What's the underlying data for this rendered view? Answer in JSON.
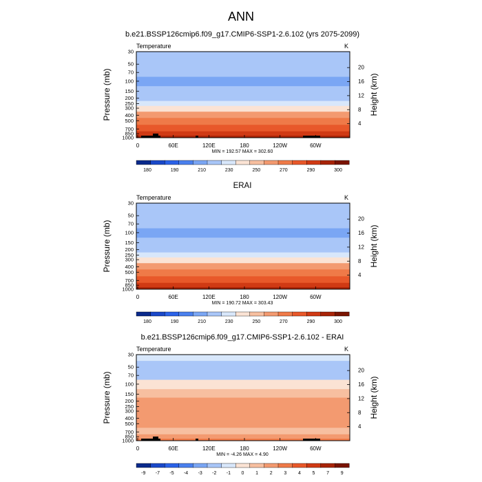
{
  "figure_title": "ANN",
  "chart_data": [
    {
      "type": "heatmap",
      "title": "b.e21.BSSP126cmip6.f09_g17.CMIP6-SSP1-2.6.102 (yrs 2075-2099)",
      "variable": "Temperature",
      "units": "K",
      "ylabel": "Pressure (mb)",
      "ylabel_right": "Height (km)",
      "x_ticks": [
        "0",
        "60E",
        "120E",
        "180",
        "120W",
        "60W"
      ],
      "y_ticks": [
        "30",
        "50",
        "70",
        "100",
        "150",
        "200",
        "250",
        "300",
        "400",
        "500",
        "700",
        "850",
        "1000"
      ],
      "height_ticks": [
        "20",
        "16",
        "12",
        "8",
        "4"
      ],
      "stats": "MIN = 192.57  MAX = 302.60",
      "colorbar_labels": [
        "180",
        "190",
        "210",
        "230",
        "250",
        "270",
        "290",
        "300"
      ],
      "colorbar_colors": [
        "#0a2a8c",
        "#1a48c8",
        "#2b62e8",
        "#4a80ee",
        "#7aa6f4",
        "#a9c6f8",
        "#d8e7fb",
        "#fbe3d4",
        "#f7bfa0",
        "#f39a70",
        "#ef7a48",
        "#e8582a",
        "#d03a14",
        "#a82408",
        "#7a1402"
      ],
      "bands": [
        {
          "p": 30,
          "t": 217
        },
        {
          "p": 50,
          "t": 213
        },
        {
          "p": 70,
          "t": 210
        },
        {
          "p": 100,
          "t": 205
        },
        {
          "p": 150,
          "t": 210
        },
        {
          "p": 200,
          "t": 218
        },
        {
          "p": 250,
          "t": 228
        },
        {
          "p": 300,
          "t": 238
        },
        {
          "p": 400,
          "t": 252
        },
        {
          "p": 500,
          "t": 262
        },
        {
          "p": 700,
          "t": 276
        },
        {
          "p": 850,
          "t": 285
        },
        {
          "p": 1000,
          "t": 296
        }
      ]
    },
    {
      "type": "heatmap",
      "title": "ERAI",
      "variable": "Temperature",
      "units": "K",
      "ylabel": "Pressure (mb)",
      "ylabel_right": "Height (km)",
      "x_ticks": [
        "0",
        "60E",
        "120E",
        "180",
        "120W",
        "60W"
      ],
      "y_ticks": [
        "30",
        "50",
        "70",
        "100",
        "150",
        "200",
        "250",
        "300",
        "400",
        "500",
        "700",
        "850",
        "1000"
      ],
      "height_ticks": [
        "20",
        "16",
        "12",
        "8",
        "4"
      ],
      "stats": "MIN = 190.72  MAX = 303.43",
      "colorbar_labels": [
        "180",
        "190",
        "210",
        "230",
        "250",
        "270",
        "290",
        "300"
      ],
      "colorbar_colors": [
        "#0a2a8c",
        "#1a48c8",
        "#2b62e8",
        "#4a80ee",
        "#7aa6f4",
        "#a9c6f8",
        "#d8e7fb",
        "#fbe3d4",
        "#f7bfa0",
        "#f39a70",
        "#ef7a48",
        "#e8582a",
        "#d03a14",
        "#a82408",
        "#7a1402"
      ],
      "bands": [
        {
          "p": 30,
          "t": 218
        },
        {
          "p": 50,
          "t": 214
        },
        {
          "p": 70,
          "t": 211
        },
        {
          "p": 100,
          "t": 206
        },
        {
          "p": 150,
          "t": 211
        },
        {
          "p": 200,
          "t": 219
        },
        {
          "p": 250,
          "t": 228
        },
        {
          "p": 300,
          "t": 237
        },
        {
          "p": 400,
          "t": 250
        },
        {
          "p": 500,
          "t": 260
        },
        {
          "p": 700,
          "t": 274
        },
        {
          "p": 850,
          "t": 283
        },
        {
          "p": 1000,
          "t": 294
        }
      ]
    },
    {
      "type": "heatmap",
      "title": "b.e21.BSSP126cmip6.f09_g17.CMIP6-SSP1-2.6.102 - ERAI",
      "variable": "Temperature",
      "units": "K",
      "ylabel": "Pressure (mb)",
      "ylabel_right": "Height (km)",
      "x_ticks": [
        "0",
        "60E",
        "120E",
        "180",
        "120W",
        "60W"
      ],
      "y_ticks": [
        "30",
        "50",
        "70",
        "100",
        "150",
        "200",
        "250",
        "300",
        "400",
        "500",
        "700",
        "850",
        "1000"
      ],
      "height_ticks": [
        "20",
        "16",
        "12",
        "8",
        "4"
      ],
      "stats": "MIN =  -4.26  MAX =   4.90",
      "colorbar_labels": [
        "-9",
        "-7",
        "-5",
        "-4",
        "-3",
        "-2",
        "-1",
        "0",
        "1",
        "2",
        "3",
        "4",
        "5",
        "7",
        "9"
      ],
      "colorbar_colors": [
        "#0a2a8c",
        "#1a48c8",
        "#2b62e8",
        "#4a80ee",
        "#7aa6f4",
        "#a9c6f8",
        "#d8e7fb",
        "#fbe3d4",
        "#f7bfa0",
        "#f39a70",
        "#ef7a48",
        "#e8582a",
        "#d03a14",
        "#a82408",
        "#7a1402"
      ],
      "bands": [
        {
          "p": 30,
          "t": -1.5
        },
        {
          "p": 50,
          "t": -2.5
        },
        {
          "p": 70,
          "t": -2.5
        },
        {
          "p": 100,
          "t": -0.5
        },
        {
          "p": 150,
          "t": 1.5
        },
        {
          "p": 200,
          "t": 2.5
        },
        {
          "p": 250,
          "t": 2.5
        },
        {
          "p": 300,
          "t": 2.5
        },
        {
          "p": 400,
          "t": 2.5
        },
        {
          "p": 500,
          "t": 2.5
        },
        {
          "p": 700,
          "t": 1.5
        },
        {
          "p": 850,
          "t": 2.5
        },
        {
          "p": 1000,
          "t": 3.5
        }
      ]
    }
  ]
}
